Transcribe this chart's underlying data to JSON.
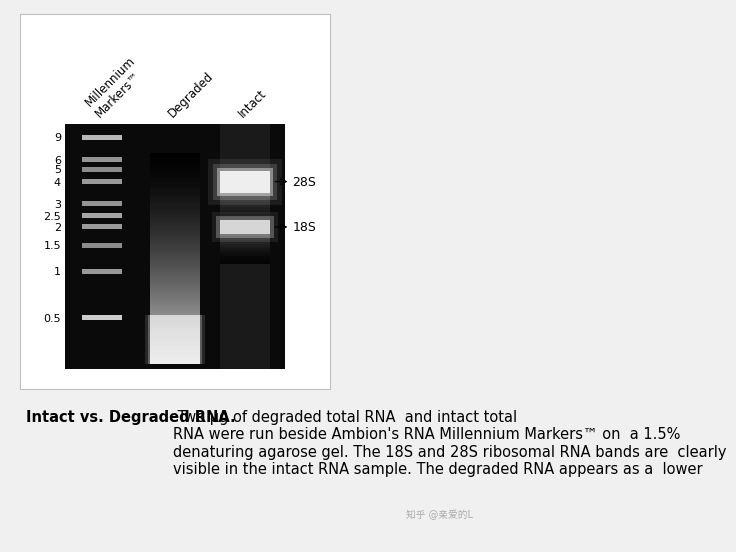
{
  "figure_bg": "#f0f0f0",
  "panel_bg": "#ffffff",
  "gel_bg": "#111111",
  "lane_labels": [
    "Millennium\nMarkers™",
    "Degraded",
    "Intact"
  ],
  "marker_labels": [
    "9",
    "6",
    "5",
    "4",
    "3",
    "2.5",
    "2",
    "1.5",
    "1",
    "0.5"
  ],
  "caption_bold": "Intact vs. Degraded RNA.",
  "caption_normal": " Two μg of degraded total RNA  and intact total\nRNA were run beside Ambion's RNA Millennium Markers™ on  a 1.5%\ndenaturing agarose gel. The 18S and 28S ribosomal RNA bands are  clearly\nvisible in the intact RNA sample. The degraded RNA appears as a  lower",
  "watermark": "知乎 @亲爱的L",
  "title_fontsize": 8.5,
  "caption_fontsize": 10.5,
  "marker_fontsize": 8,
  "band_label_fontsize": 9
}
